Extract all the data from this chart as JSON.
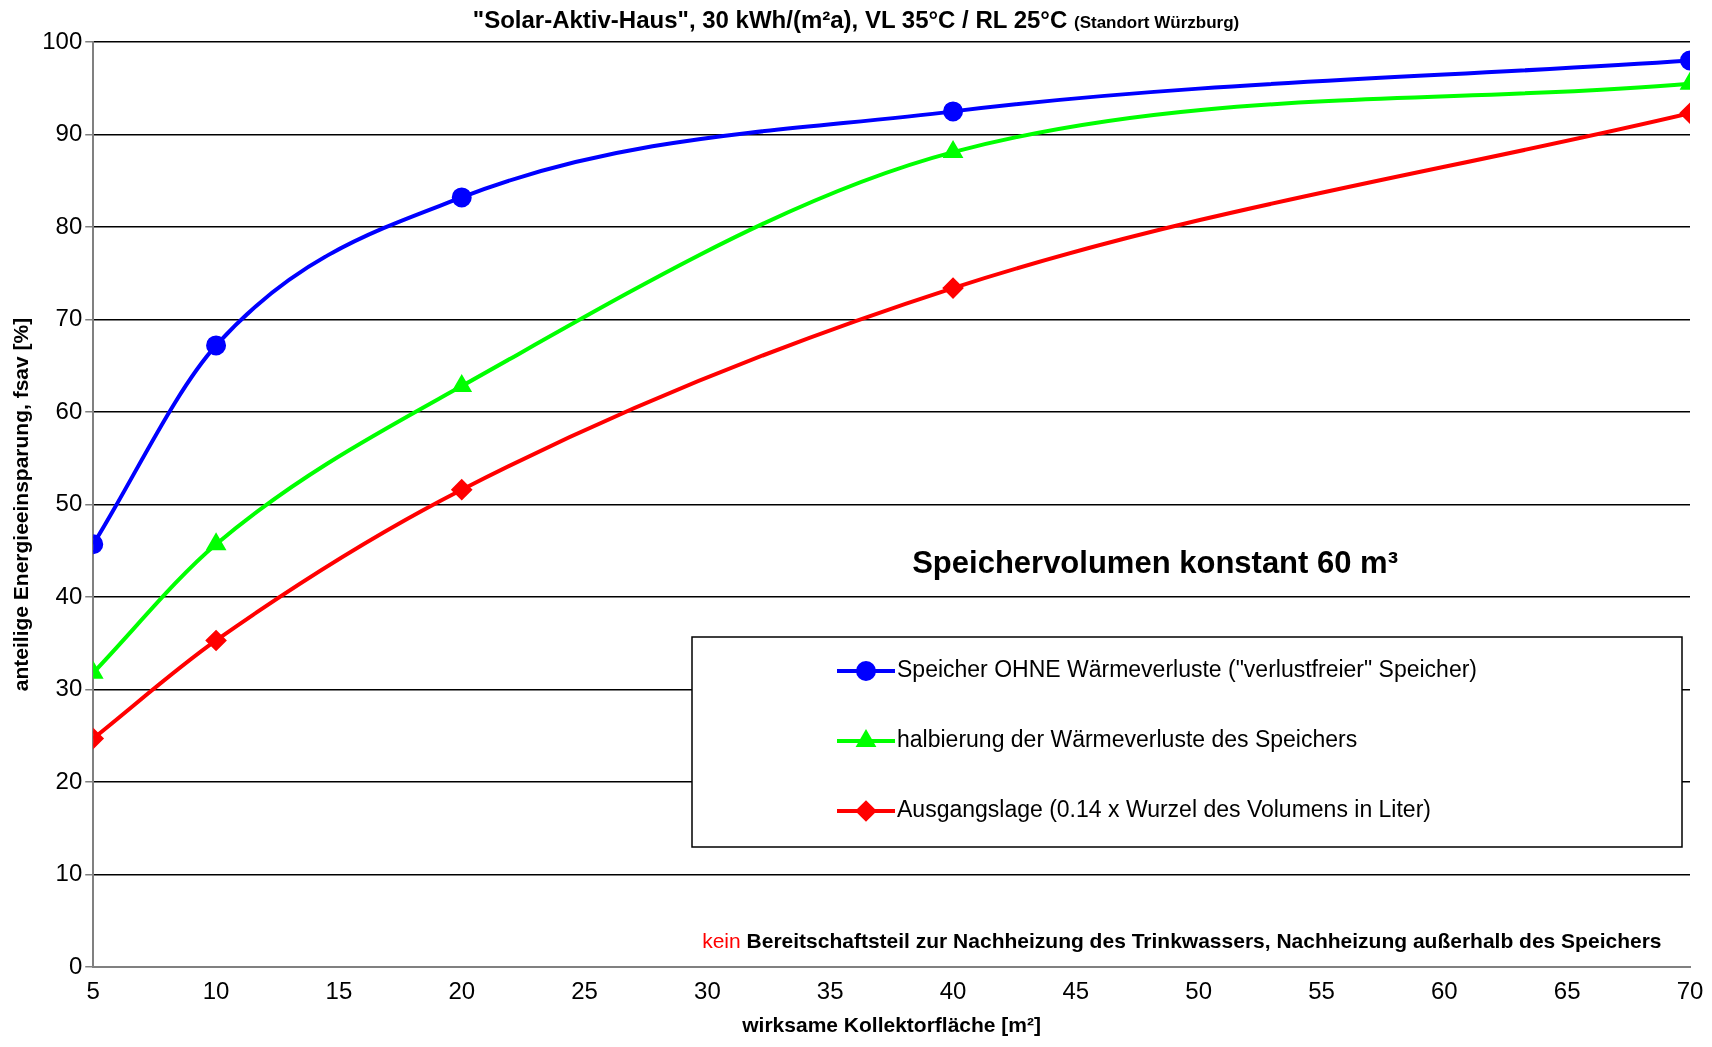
{
  "chart_data": {
    "type": "line",
    "title": "\"Solar-Aktiv-Haus\", 30 kWh/(m²a), VL 35°C / RL 25°C",
    "subtitle": "(Standort Würzburg)",
    "xlabel": "wirksame Kollektorfläche [m²]",
    "ylabel": "anteilige Energieeinsparung, fsav [%]",
    "x": [
      5,
      10,
      20,
      40,
      70
    ],
    "series": [
      {
        "name": "Speicher OHNE Wärmeverluste (\"verlustfreier\" Speicher)",
        "color": "#0000ff",
        "marker": "circle",
        "values": [
          45.7,
          67.2,
          83.2,
          92.5,
          98.0
        ]
      },
      {
        "name": "halbierung der Wärmeverluste des Speichers",
        "color": "#00ff00",
        "marker": "triangle",
        "values": [
          31.8,
          45.7,
          62.8,
          88.1,
          95.5
        ]
      },
      {
        "name": "Ausgangslage (0.14 x Wurzel des Volumens in Liter)",
        "color": "#ff0000",
        "marker": "diamond",
        "values": [
          24.7,
          35.3,
          51.6,
          73.4,
          92.3
        ]
      }
    ],
    "xlim": [
      5,
      70
    ],
    "xticks": [
      5,
      10,
      15,
      20,
      25,
      30,
      35,
      40,
      45,
      50,
      55,
      60,
      65,
      70
    ],
    "ylim": [
      0,
      100
    ],
    "yticks": [
      0,
      10,
      20,
      30,
      40,
      50,
      60,
      70,
      80,
      90,
      100
    ],
    "grid": "y",
    "legend": "bottom right",
    "line_style": "solid",
    "annotations": [
      "Speichervolumen konstant 60 m³",
      "kein Bereitschaftsteil zur Nachheizung des Trinkwassers, Nachheizung außerhalb des Speichers"
    ]
  }
}
